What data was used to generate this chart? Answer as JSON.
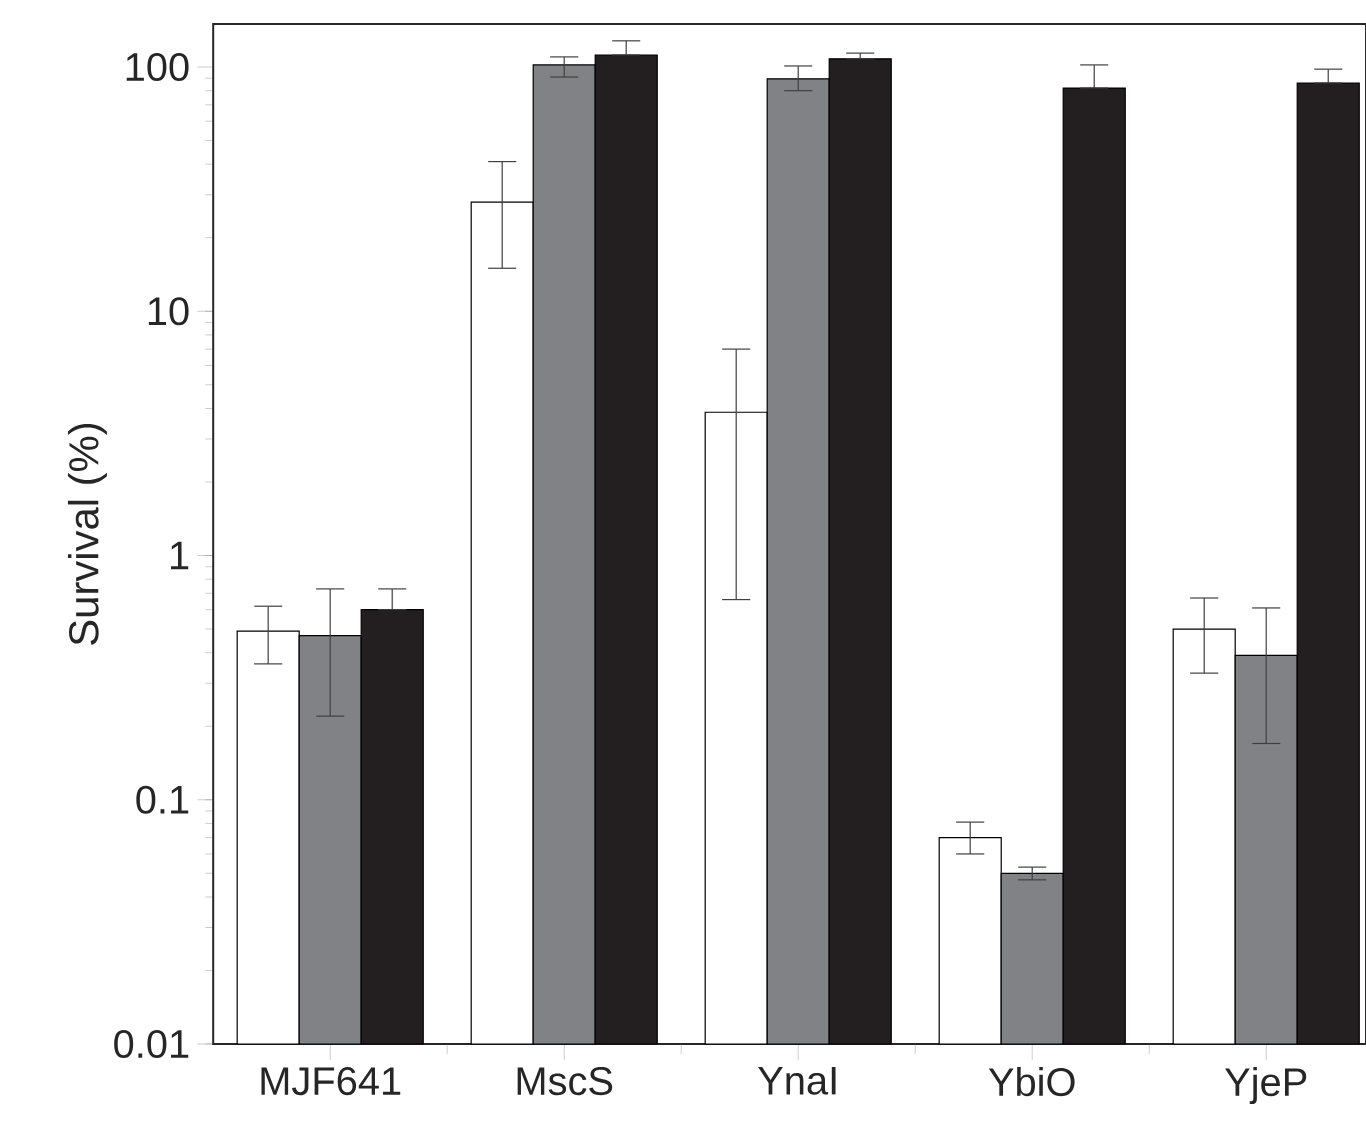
{
  "chart_data": {
    "type": "bar",
    "ylabel": "Survival (%)",
    "categories": [
      "MJF641",
      "MscS",
      "YnaI",
      "YbiO",
      "YjeP"
    ],
    "series": [
      {
        "color": "#ffffff",
        "values": [
          0.49,
          28,
          3.86,
          0.07,
          0.5
        ],
        "errors": [
          [
            0.36,
            0.62
          ],
          [
            15,
            41
          ],
          [
            0.66,
            7.0
          ],
          [
            0.06,
            0.081
          ],
          [
            0.33,
            0.67
          ]
        ]
      },
      {
        "color": "#808285",
        "values": [
          0.47,
          102,
          89.5,
          0.05,
          0.39
        ],
        "errors": [
          [
            0.22,
            0.73
          ],
          [
            91,
            110
          ],
          [
            80,
            101
          ],
          [
            0.047,
            0.053
          ],
          [
            0.17,
            0.61
          ]
        ]
      },
      {
        "color": "#231f20",
        "values": [
          0.6,
          112,
          108,
          82,
          86
        ],
        "errors": [
          [
            0.6,
            0.73
          ],
          [
            112,
            128
          ],
          [
            108,
            114
          ],
          [
            82,
            102
          ],
          [
            86,
            98
          ]
        ]
      }
    ],
    "log": true,
    "ylim": [
      0.01,
      150
    ],
    "yticks": [
      0.01,
      0.1,
      1,
      10,
      100
    ]
  }
}
